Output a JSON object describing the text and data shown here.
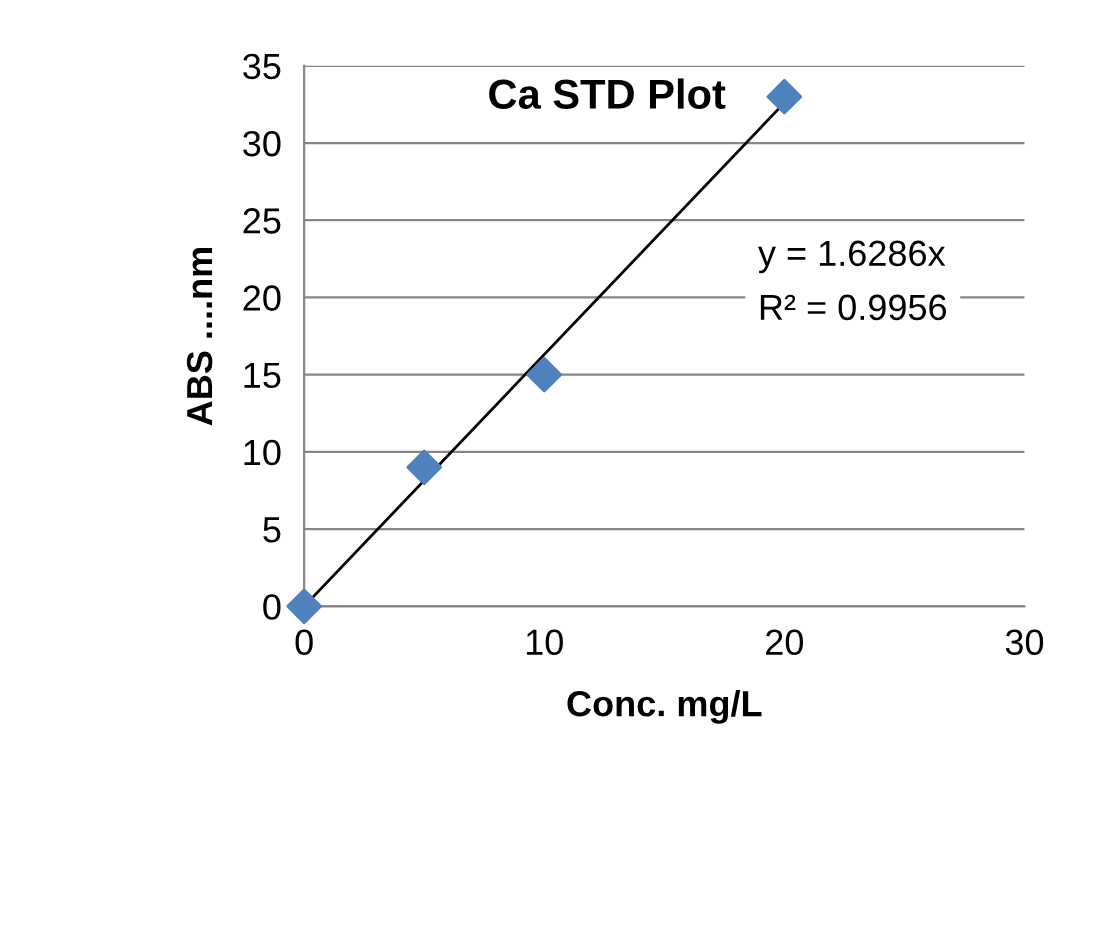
{
  "chart_data": {
    "type": "scatter",
    "title": "Ca STD Plot",
    "xlabel": "Conc. mg/L",
    "ylabel": "ABS ....nm",
    "x": [
      0,
      5,
      10,
      20
    ],
    "series": [
      {
        "color": "#4f81bd",
        "values": [
          0,
          9,
          15,
          33
        ],
        "marker": "diamond"
      },
      {
        "type": "line",
        "color": "#000000",
        "x": [
          0,
          20
        ],
        "values": [
          0,
          32.6
        ],
        "marker": "none"
      }
    ],
    "annotations": [
      "y = 1.6286x",
      "R² = 0.9956"
    ],
    "xlim": [
      0,
      30
    ],
    "xticks": [
      0,
      10,
      20,
      30
    ],
    "ylim": [
      0,
      35
    ],
    "yticks": [
      0,
      5,
      10,
      15,
      20,
      25,
      30,
      35
    ],
    "grid": "y",
    "legend": false
  }
}
